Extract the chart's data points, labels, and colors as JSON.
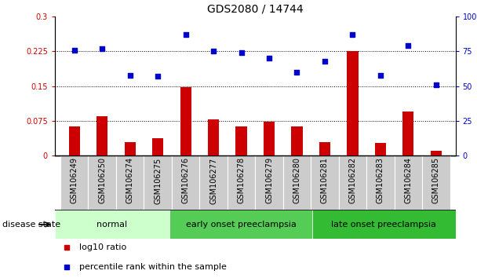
{
  "title": "GDS2080 / 14744",
  "samples": [
    "GSM106249",
    "GSM106250",
    "GSM106274",
    "GSM106275",
    "GSM106276",
    "GSM106277",
    "GSM106278",
    "GSM106279",
    "GSM106280",
    "GSM106281",
    "GSM106282",
    "GSM106283",
    "GSM106284",
    "GSM106285"
  ],
  "log10_ratio": [
    0.063,
    0.085,
    0.03,
    0.038,
    0.148,
    0.078,
    0.063,
    0.073,
    0.063,
    0.03,
    0.225,
    0.028,
    0.095,
    0.01
  ],
  "percentile_rank": [
    76,
    77,
    58,
    57,
    87,
    75,
    74,
    70,
    60,
    68,
    87,
    58,
    79,
    51
  ],
  "bar_color": "#cc0000",
  "dot_color": "#0000cc",
  "groups": [
    {
      "label": "normal",
      "start": 0,
      "end": 4,
      "color": "#ccffcc"
    },
    {
      "label": "early onset preeclampsia",
      "start": 4,
      "end": 9,
      "color": "#55cc55"
    },
    {
      "label": "late onset preeclampsia",
      "start": 9,
      "end": 14,
      "color": "#33bb33"
    }
  ],
  "ylim_left": [
    0,
    0.3
  ],
  "ylim_right": [
    0,
    100
  ],
  "yticks_left": [
    0,
    0.075,
    0.15,
    0.225,
    0.3
  ],
  "yticks_right": [
    0,
    25,
    50,
    75,
    100
  ],
  "ytick_labels_left": [
    "0",
    "0.075",
    "0.15",
    "0.225",
    "0.3"
  ],
  "ytick_labels_right": [
    "0",
    "25",
    "50",
    "75",
    "100%"
  ],
  "hlines": [
    0.075,
    0.15,
    0.225
  ],
  "legend_items": [
    {
      "label": "log10 ratio",
      "color": "#cc0000"
    },
    {
      "label": "percentile rank within the sample",
      "color": "#0000cc"
    }
  ],
  "disease_state_label": "disease state",
  "title_fontsize": 10,
  "tick_fontsize": 7,
  "label_fontsize": 8,
  "group_fontsize": 8,
  "legend_fontsize": 8,
  "xtick_gray": "#cccccc",
  "bar_width": 0.4
}
